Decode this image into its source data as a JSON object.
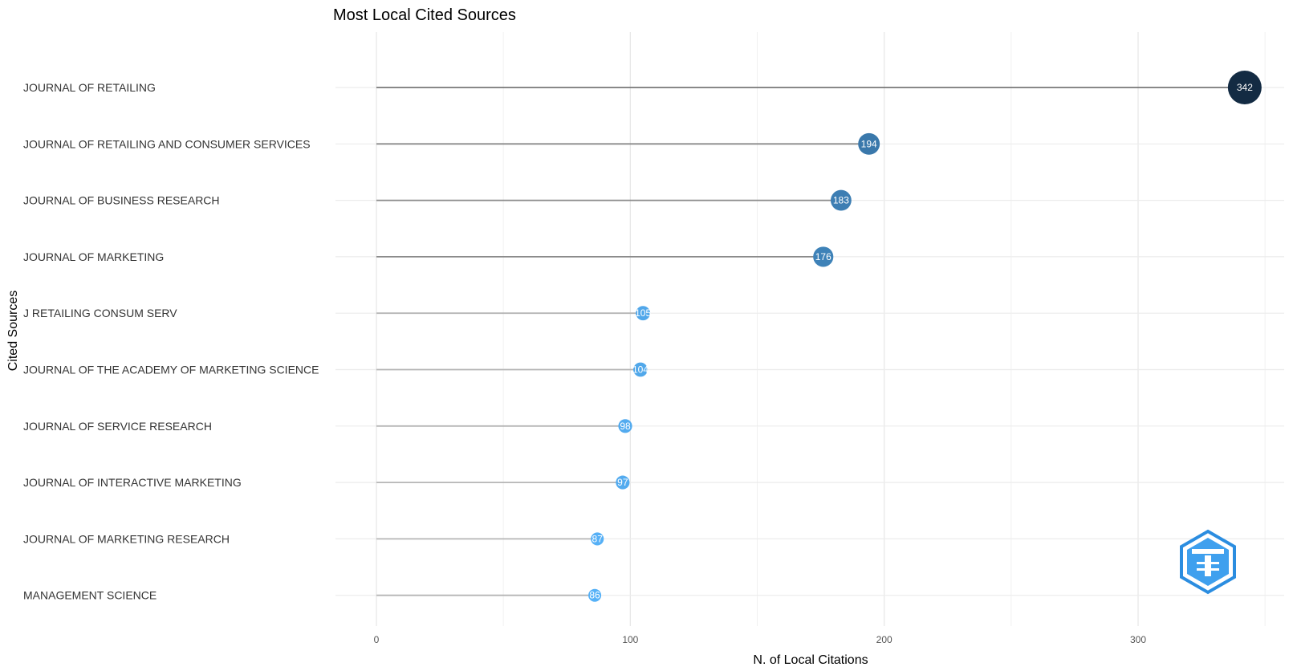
{
  "chart_data": {
    "type": "lollipop",
    "title": "Most Local Cited Sources",
    "xlabel": "N. of Local Citations",
    "ylabel": "Cited Sources",
    "xlim": [
      0,
      350
    ],
    "xticks": [
      0,
      100,
      200,
      300
    ],
    "grid": true,
    "legend": "none",
    "categories": [
      "JOURNAL OF RETAILING",
      "JOURNAL OF RETAILING AND CONSUMER SERVICES",
      "JOURNAL OF BUSINESS RESEARCH",
      "JOURNAL OF MARKETING",
      "J  RETAILING CONSUM  SERV",
      "JOURNAL OF THE ACADEMY OF MARKETING SCIENCE",
      "JOURNAL OF SERVICE RESEARCH",
      "JOURNAL OF INTERACTIVE MARKETING",
      "JOURNAL OF MARKETING RESEARCH",
      "MANAGEMENT SCIENCE"
    ],
    "values": [
      342,
      194,
      183,
      176,
      105,
      104,
      98,
      97,
      87,
      86
    ],
    "color_scale": {
      "low": "#56B1F7",
      "high": "#132B43"
    }
  }
}
